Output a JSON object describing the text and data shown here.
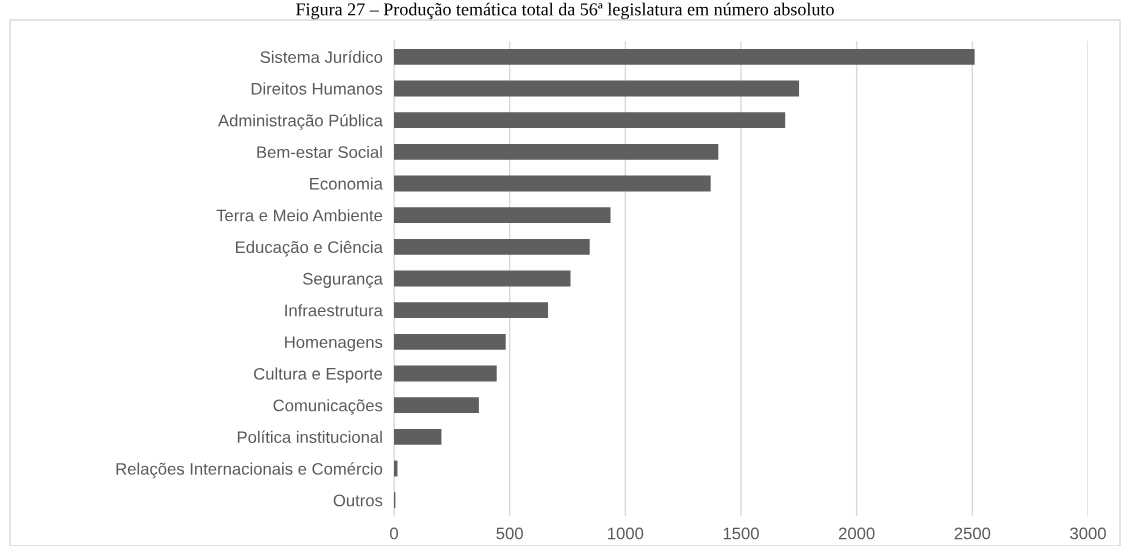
{
  "chart_data": {
    "type": "bar",
    "orientation": "horizontal",
    "title": "Figura 27 – Produção temática total da 56ª legislatura em número absoluto",
    "categories": [
      "Sistema Jurídico",
      "Direitos Humanos",
      "Administração Pública",
      "Bem-estar Social",
      "Economia",
      "Terra e Meio Ambiente",
      "Educação e Ciência",
      "Segurança",
      "Infraestrutura",
      "Homenagens",
      "Cultura e Esporte",
      "Comunicações",
      "Política institucional",
      "Relações Internacionais e Comércio",
      "Outros"
    ],
    "values": [
      2510,
      1751,
      1691,
      1402,
      1369,
      936,
      846,
      763,
      666,
      483,
      444,
      367,
      205,
      15,
      6
    ],
    "color": "#5f5f5f",
    "xlim": [
      0,
      3000
    ],
    "xticks": [
      0,
      500,
      1000,
      1500,
      2000,
      2500,
      3000
    ],
    "grid": "x",
    "legend": false
  }
}
